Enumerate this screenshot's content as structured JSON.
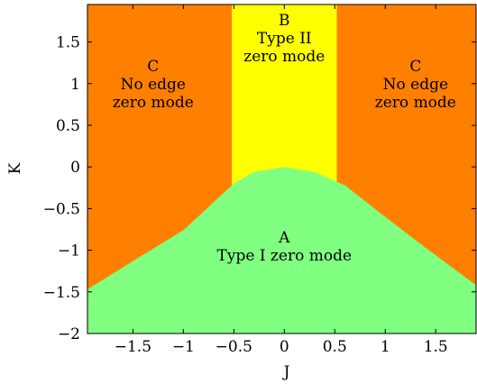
{
  "chart_data": {
    "type": "heatmap",
    "title": "",
    "xlabel": "J",
    "ylabel": "K",
    "xlim": [
      -1.95,
      1.9
    ],
    "ylim": [
      -2.0,
      1.95
    ],
    "x_ticks": [
      {
        "value": -1.5,
        "label": "−1.5"
      },
      {
        "value": -1,
        "label": "−1"
      },
      {
        "value": -0.5,
        "label": "−0.5"
      },
      {
        "value": 0,
        "label": "0"
      },
      {
        "value": 0.5,
        "label": "0.5"
      },
      {
        "value": 1,
        "label": "1"
      },
      {
        "value": 1.5,
        "label": "1.5"
      }
    ],
    "y_ticks": [
      {
        "value": -2,
        "label": "−2"
      },
      {
        "value": -1.5,
        "label": "−1.5"
      },
      {
        "value": -1,
        "label": "−1"
      },
      {
        "value": -0.5,
        "label": "−0.5"
      },
      {
        "value": 0,
        "label": "0"
      },
      {
        "value": 0.5,
        "label": "0.5"
      },
      {
        "value": 1,
        "label": "1"
      },
      {
        "value": 1.5,
        "label": "1.5"
      }
    ],
    "grid": false,
    "colors": {
      "C": "#ff7f00",
      "B": "#ffff00",
      "A": "#80ff80"
    },
    "boundaries": {
      "B_column_J": [
        -0.52,
        0.52
      ],
      "A_upper_K": [
        [
          -1.95,
          -1.47
        ],
        [
          -1.5,
          -1.13
        ],
        [
          -1.0,
          -0.76
        ],
        [
          -0.5,
          -0.2
        ],
        [
          -0.3,
          -0.06
        ],
        [
          0.0,
          0.0
        ],
        [
          0.3,
          -0.06
        ],
        [
          0.6,
          -0.22
        ],
        [
          1.0,
          -0.6
        ],
        [
          1.4,
          -0.97
        ],
        [
          1.9,
          -1.42
        ]
      ]
    },
    "regions": [
      {
        "id": "C-left",
        "lines": [
          "C",
          "No edge",
          "zero mode"
        ],
        "x": -1.3,
        "y": 1.0
      },
      {
        "id": "B",
        "lines": [
          "B",
          "Type II",
          "zero mode"
        ],
        "x": 0.0,
        "y": 1.55
      },
      {
        "id": "C-right",
        "lines": [
          "C",
          "No edge",
          "zero mode"
        ],
        "x": 1.3,
        "y": 1.0
      },
      {
        "id": "A",
        "lines": [
          "A",
          "Type I zero mode"
        ],
        "x": 0.0,
        "y": -0.95
      }
    ]
  }
}
